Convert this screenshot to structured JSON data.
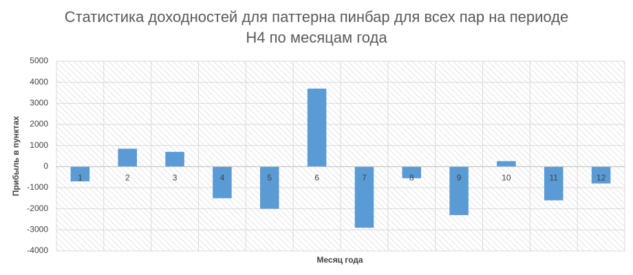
{
  "chart_data": {
    "type": "bar",
    "title": "Статистика доходностей для паттерна пинбар для всех пар на периоде H4 по месяцам года",
    "x_label": "Месяц года",
    "y_label": "Прибыль в пунктах",
    "categories": [
      "1",
      "2",
      "3",
      "4",
      "5",
      "6",
      "7",
      "8",
      "9",
      "10",
      "11",
      "12"
    ],
    "values": [
      -700,
      850,
      700,
      -1500,
      -2000,
      3700,
      -2900,
      -550,
      -2300,
      260,
      -1600,
      -800
    ],
    "color": "#5b9bd5",
    "ylim": [
      -4000,
      5000
    ],
    "yticks": [
      -4000,
      -3000,
      -2000,
      -1000,
      0,
      1000,
      2000,
      3000,
      4000,
      5000
    ],
    "grid": true
  }
}
